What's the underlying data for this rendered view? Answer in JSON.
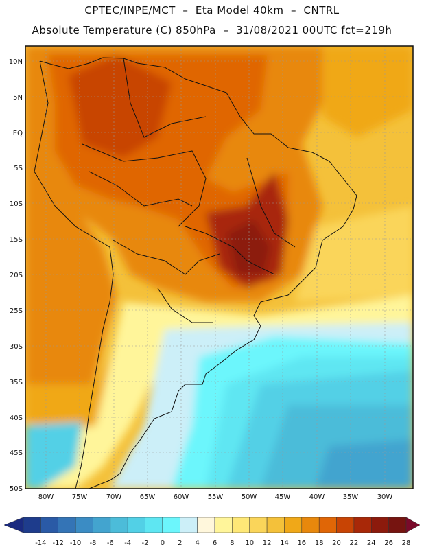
{
  "header": {
    "line1": "CPTEC/INPE/MCT  –  Eta Model 40km  –  CNTRL",
    "line2": "Absolute Temperature (C) 850hPa  –  31/08/2021 00UTC fct=219h"
  },
  "map": {
    "lat_labels": [
      "10N",
      "5N",
      "EQ",
      "5S",
      "10S",
      "15S",
      "20S",
      "25S",
      "30S",
      "35S",
      "40S",
      "45S",
      "50S"
    ],
    "lon_labels": [
      "80W",
      "75W",
      "70W",
      "65W",
      "60W",
      "55W",
      "50W",
      "45W",
      "40W",
      "35W",
      "30W"
    ],
    "lat_range": [
      10,
      -50
    ],
    "lon_range": [
      -83,
      -26
    ]
  },
  "legend": {
    "levels": [
      "-14",
      "-12",
      "-10",
      "-8",
      "-6",
      "-4",
      "-2",
      "0",
      "2",
      "4",
      "6",
      "8",
      "10",
      "12",
      "14",
      "16",
      "18",
      "20",
      "22",
      "24",
      "26",
      "28"
    ],
    "colors": [
      "#1e3c8c",
      "#2a5aa6",
      "#3474b6",
      "#3b8cc4",
      "#43a4cf",
      "#4cbcd9",
      "#52d0e6",
      "#5ee6f2",
      "#6cf6fc",
      "#cceff8",
      "#fff7dc",
      "#fff59a",
      "#fee877",
      "#fad55a",
      "#f4c13a",
      "#f0a818",
      "#e8880c",
      "#e06606",
      "#c84404",
      "#a82808",
      "#8c1a0c",
      "#761410"
    ],
    "low_end_color": "#1a2a80",
    "high_end_color": "#7a0a2a"
  }
}
